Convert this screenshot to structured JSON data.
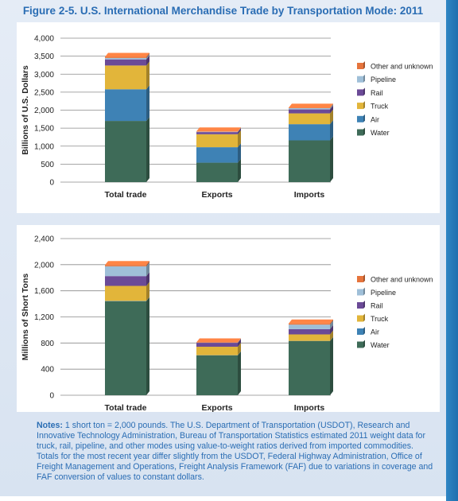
{
  "title": "Figure 2-5. U.S. International Merchandise Trade by Transportation Mode: 2011",
  "notes": {
    "label": "Notes:",
    "text": "1 short ton = 2,000 pounds. The U.S. Department of Transportation (USDOT), Research and Innovative Technology Administration, Bureau of Transportation Statistics estimated 2011 weight data for truck, rail, pipeline, and other modes using value-to-weight ratios derived from imported commodities. Totals for the most recent year differ slightly from the USDOT, Federal Highway Administration, Office of Freight Management and Operations, Freight Analysis Framework (FAF) due to variations in coverage and FAF conversion of values to constant dollars."
  },
  "colors": {
    "Water": "#3e6b58",
    "Air": "#3e82b5",
    "Truck": "#e2b53a",
    "Rail": "#6b4a97",
    "Pipeline": "#9fbfd8",
    "Other and unknown": "#e6743c"
  },
  "chart_data": [
    {
      "type": "bar",
      "stacked": true,
      "ylabel": "Billions of U.S. Dollars",
      "ylim": [
        0,
        4000
      ],
      "yticks": [
        "0",
        "500",
        "1,000",
        "1,500",
        "2,000",
        "2,500",
        "3,000",
        "3,500",
        "4,000"
      ],
      "categories": [
        "Total trade",
        "Exports",
        "Imports"
      ],
      "series": [
        {
          "name": "Water",
          "values": [
            1700,
            540,
            1160
          ]
        },
        {
          "name": "Air",
          "values": [
            880,
            430,
            450
          ]
        },
        {
          "name": "Truck",
          "values": [
            660,
            360,
            300
          ]
        },
        {
          "name": "Rail",
          "values": [
            170,
            60,
            110
          ]
        },
        {
          "name": "Pipeline",
          "values": [
            40,
            10,
            35
          ]
        },
        {
          "name": "Other and unknown",
          "values": [
            30,
            10,
            15
          ]
        }
      ],
      "legend": "right"
    },
    {
      "type": "bar",
      "stacked": true,
      "ylabel": "Millions of Short Tons",
      "ylim": [
        0,
        2400
      ],
      "yticks": [
        "0",
        "400",
        "800",
        "1,200",
        "1,600",
        "2,000",
        "2,400"
      ],
      "categories": [
        "Total trade",
        "Exports",
        "Imports"
      ],
      "series": [
        {
          "name": "Water",
          "values": [
            1440,
            610,
            830
          ]
        },
        {
          "name": "Air",
          "values": [
            5,
            3,
            2
          ]
        },
        {
          "name": "Truck",
          "values": [
            230,
            130,
            100
          ]
        },
        {
          "name": "Rail",
          "values": [
            150,
            60,
            80
          ]
        },
        {
          "name": "Pipeline",
          "values": [
            150,
            5,
            70
          ]
        },
        {
          "name": "Other and unknown",
          "values": [
            20,
            2,
            18
          ]
        }
      ],
      "legend": "right"
    }
  ]
}
